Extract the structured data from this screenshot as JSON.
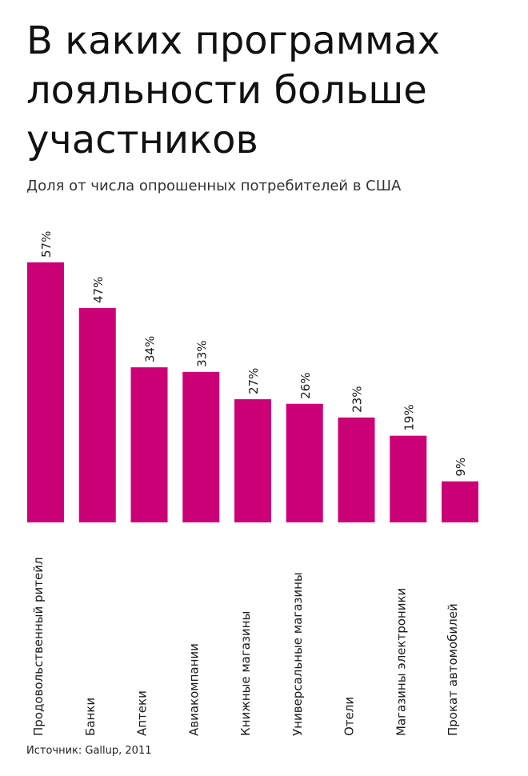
{
  "header": {
    "title": "В каких программах лояльности больше участников",
    "subtitle": "Доля от числа опрошенных потребителей в США"
  },
  "footer": {
    "source": "Источник: Gallup, 2011"
  },
  "colors": {
    "bar": "#cc0077",
    "text": "#1a1a1a"
  },
  "chart_data": {
    "type": "bar",
    "categories": [
      "Продовольственный ритейл",
      "Банки",
      "Аптеки",
      "Авиакомпании",
      "Книжные магазины",
      "Универсальные магазины",
      "Отели",
      "Магазины электроники",
      "Прокат автомобилей"
    ],
    "values": [
      57,
      47,
      34,
      33,
      27,
      26,
      23,
      19,
      9
    ],
    "value_labels": [
      "57%",
      "47%",
      "34%",
      "33%",
      "27%",
      "26%",
      "23%",
      "19%",
      "9%"
    ],
    "ylim": [
      0,
      57
    ],
    "grid": false,
    "legend": "none"
  }
}
